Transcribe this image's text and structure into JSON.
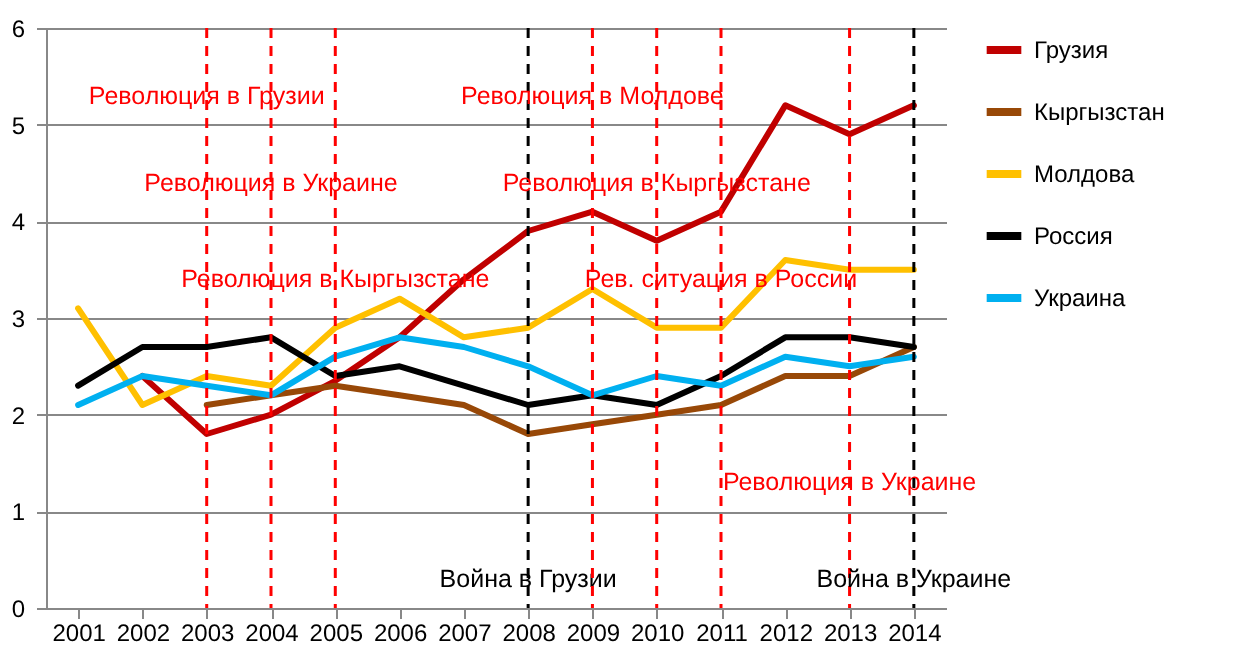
{
  "chart_data": {
    "type": "line",
    "categories": [
      "2001",
      "2002",
      "2003",
      "2004",
      "2005",
      "2006",
      "2007",
      "2008",
      "2009",
      "2010",
      "2011",
      "2012",
      "2013",
      "2014"
    ],
    "series": [
      {
        "name": "Грузия",
        "color": "#c00000",
        "values": [
          null,
          2.4,
          1.8,
          2.0,
          2.35,
          2.8,
          3.4,
          3.9,
          4.1,
          3.8,
          4.1,
          5.2,
          4.9,
          5.2
        ]
      },
      {
        "name": "Кыргызстан",
        "color": "#984807",
        "values": [
          null,
          null,
          2.1,
          2.2,
          2.3,
          2.2,
          2.1,
          1.8,
          1.9,
          2.0,
          2.1,
          2.4,
          2.4,
          2.7
        ]
      },
      {
        "name": "Молдова",
        "color": "#ffc000",
        "values": [
          3.1,
          2.1,
          2.4,
          2.3,
          2.9,
          3.2,
          2.8,
          2.9,
          3.3,
          2.9,
          2.9,
          3.6,
          3.5,
          3.5
        ]
      },
      {
        "name": "Россия",
        "color": "#000000",
        "values": [
          2.3,
          2.7,
          2.7,
          2.8,
          2.4,
          2.5,
          2.3,
          2.1,
          2.2,
          2.1,
          2.4,
          2.8,
          2.8,
          2.7
        ]
      },
      {
        "name": "Украина",
        "color": "#00b0f0",
        "values": [
          2.1,
          2.4,
          2.3,
          2.2,
          2.6,
          2.8,
          2.7,
          2.5,
          2.2,
          2.4,
          2.3,
          2.6,
          2.5,
          2.6
        ]
      }
    ],
    "ylim": [
      0,
      6
    ],
    "yticks": [
      0,
      1,
      2,
      3,
      4,
      5,
      6
    ],
    "grid": "y",
    "legend": "right",
    "marker": "none",
    "line_style": "solid",
    "ref_lines": [
      {
        "axis": "x",
        "value": "2003",
        "label": "Революция в Грузии",
        "color": "#ff0000",
        "line_style": "dashed"
      },
      {
        "axis": "x",
        "value": "2004",
        "label": "Революция в Украине",
        "color": "#ff0000",
        "line_style": "dashed"
      },
      {
        "axis": "x",
        "value": "2005",
        "label": "Революция в Кыргызстане",
        "color": "#ff0000",
        "line_style": "dashed"
      },
      {
        "axis": "x",
        "value": "2008",
        "label": "Война в Грузии",
        "color": "#000000",
        "line_style": "dashed"
      },
      {
        "axis": "x",
        "value": "2009",
        "label": "Революция в Молдове",
        "color": "#ff0000",
        "line_style": "dashed"
      },
      {
        "axis": "x",
        "value": "2010",
        "label": "Революция в Кыргызстане",
        "color": "#ff0000",
        "line_style": "dashed"
      },
      {
        "axis": "x",
        "value": "2011",
        "label": "Рев. ситуация в России",
        "color": "#ff0000",
        "line_style": "dashed"
      },
      {
        "axis": "x",
        "value": "2013",
        "label": "Революция в Украине",
        "color": "#ff0000",
        "line_style": "dashed"
      },
      {
        "axis": "x",
        "value": "2014",
        "label": "Война в Украине",
        "color": "#000000",
        "line_style": "dashed"
      }
    ]
  }
}
